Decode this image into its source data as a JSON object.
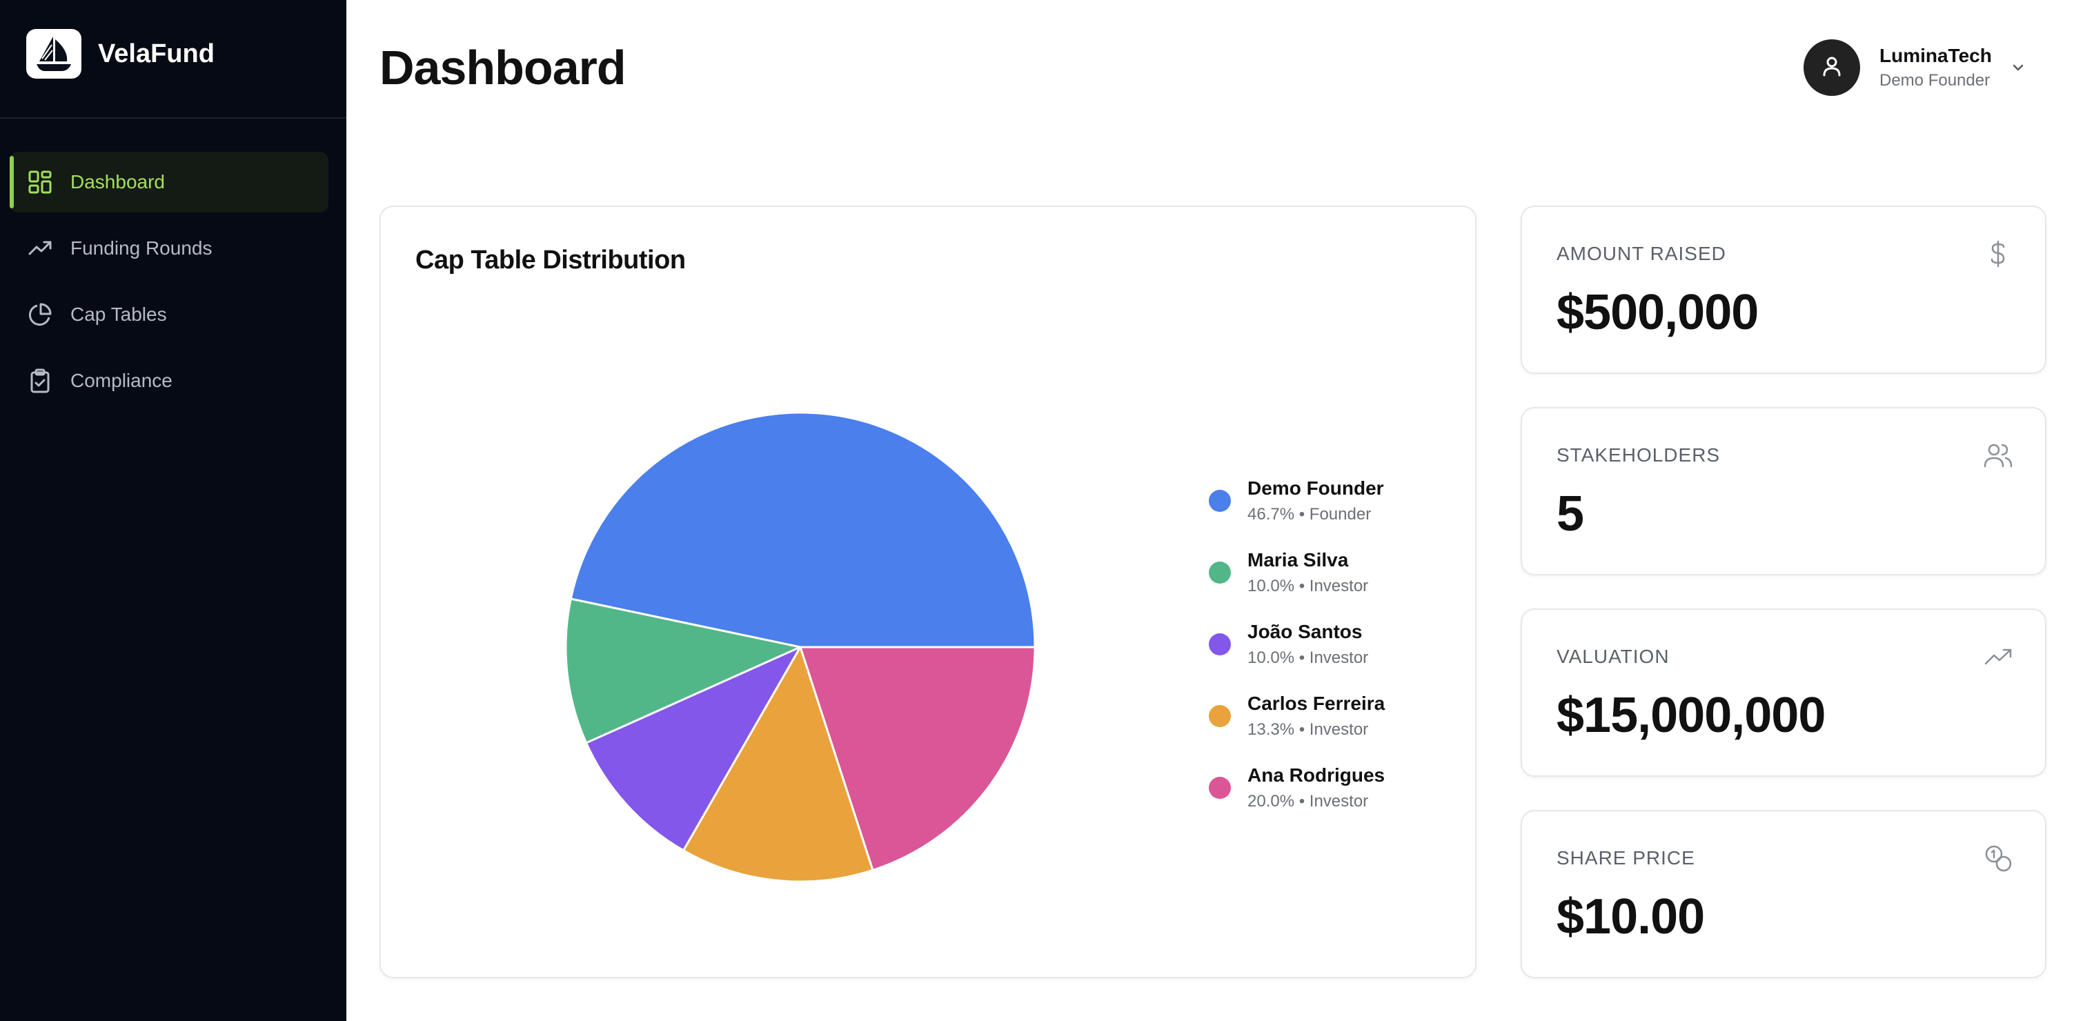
{
  "brand": {
    "name": "VelaFund",
    "logo_icon": "sailboat-icon"
  },
  "sidebar": {
    "items": [
      {
        "label": "Dashboard",
        "icon": "dashboard-grid-icon",
        "active": true
      },
      {
        "label": "Funding Rounds",
        "icon": "trending-up-icon",
        "active": false
      },
      {
        "label": "Cap Tables",
        "icon": "pie-chart-icon",
        "active": false
      },
      {
        "label": "Compliance",
        "icon": "clipboard-check-icon",
        "active": false
      }
    ]
  },
  "header": {
    "title": "Dashboard",
    "user": {
      "company": "LuminaTech",
      "role": "Demo Founder",
      "avatar_icon": "user-icon"
    }
  },
  "cap_table": {
    "title": "Cap Table Distribution",
    "legend": [
      {
        "name": "Demo Founder",
        "detail": "46.7% • Founder",
        "color": "#4a7fec"
      },
      {
        "name": "Maria Silva",
        "detail": "10.0% • Investor",
        "color": "#52b788"
      },
      {
        "name": "João Santos",
        "detail": "10.0% • Investor",
        "color": "#8257ea"
      },
      {
        "name": "Carlos Ferreira",
        "detail": "13.3% • Investor",
        "color": "#eaa23c"
      },
      {
        "name": "Ana Rodrigues",
        "detail": "20.0% • Investor",
        "color": "#da5697"
      }
    ]
  },
  "chart_data": {
    "type": "pie",
    "title": "Cap Table Distribution",
    "categories": [
      "Demo Founder",
      "Maria Silva",
      "João Santos",
      "Carlos Ferreira",
      "Ana Rodrigues"
    ],
    "values": [
      46.7,
      10.0,
      10.0,
      13.3,
      20.0
    ],
    "colors": [
      "#4a7fec",
      "#52b788",
      "#8257ea",
      "#eaa23c",
      "#da5697"
    ],
    "legend_position": "right"
  },
  "stats": [
    {
      "label": "AMOUNT RAISED",
      "value": "$500,000",
      "icon": "dollar-icon"
    },
    {
      "label": "STAKEHOLDERS",
      "value": "5",
      "icon": "users-icon"
    },
    {
      "label": "VALUATION",
      "value": "$15,000,000",
      "icon": "trending-up-icon"
    },
    {
      "label": "SHARE PRICE",
      "value": "$10.00",
      "icon": "coins-icon"
    }
  ]
}
